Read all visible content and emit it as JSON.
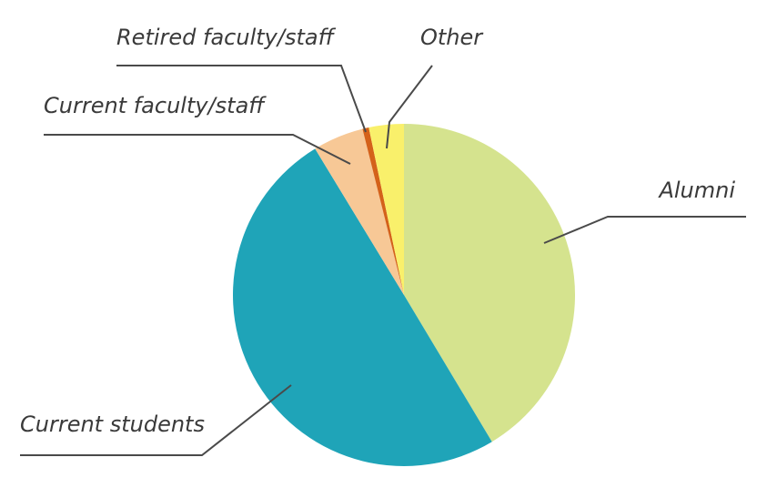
{
  "chart_data": {
    "type": "pie",
    "categories": [
      "Alumni",
      "Current students",
      "Current faculty/staff",
      "Retired faculty/staff",
      "Other"
    ],
    "values": [
      41.4,
      49.9,
      4.8,
      0.6,
      3.3
    ],
    "colors": [
      "#d5e38e",
      "#1fa4b8",
      "#f7c896",
      "#d4621a",
      "#f9f06b"
    ]
  }
}
